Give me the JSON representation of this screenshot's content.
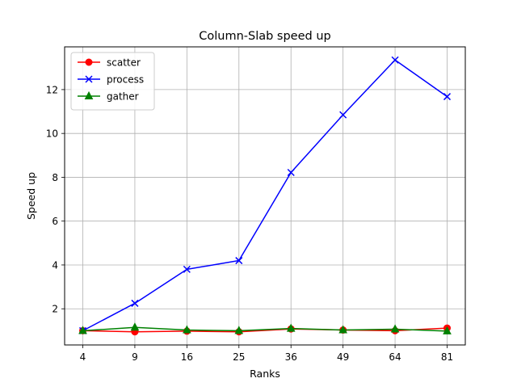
{
  "chart_data": {
    "type": "line",
    "title": "Column-Slab speed up",
    "xlabel": "Ranks",
    "ylabel": "Speed up",
    "categories": [
      "4",
      "9",
      "16",
      "25",
      "36",
      "49",
      "64",
      "81"
    ],
    "y_ticks": [
      2,
      4,
      6,
      8,
      10,
      12
    ],
    "ylim": [
      0.35,
      13.95
    ],
    "grid": true,
    "legend_position": "upper-left",
    "series": [
      {
        "name": "scatter",
        "color": "#ff0000",
        "marker": "circle",
        "values": [
          1.0,
          0.95,
          0.98,
          0.95,
          1.08,
          1.03,
          1.0,
          1.12
        ]
      },
      {
        "name": "process",
        "color": "#0000ff",
        "marker": "x",
        "values": [
          1.0,
          2.25,
          3.8,
          4.2,
          8.22,
          10.85,
          13.35,
          11.68
        ]
      },
      {
        "name": "gather",
        "color": "#008000",
        "marker": "triangle",
        "values": [
          1.0,
          1.15,
          1.03,
          1.0,
          1.1,
          1.03,
          1.07,
          0.98
        ]
      }
    ]
  }
}
